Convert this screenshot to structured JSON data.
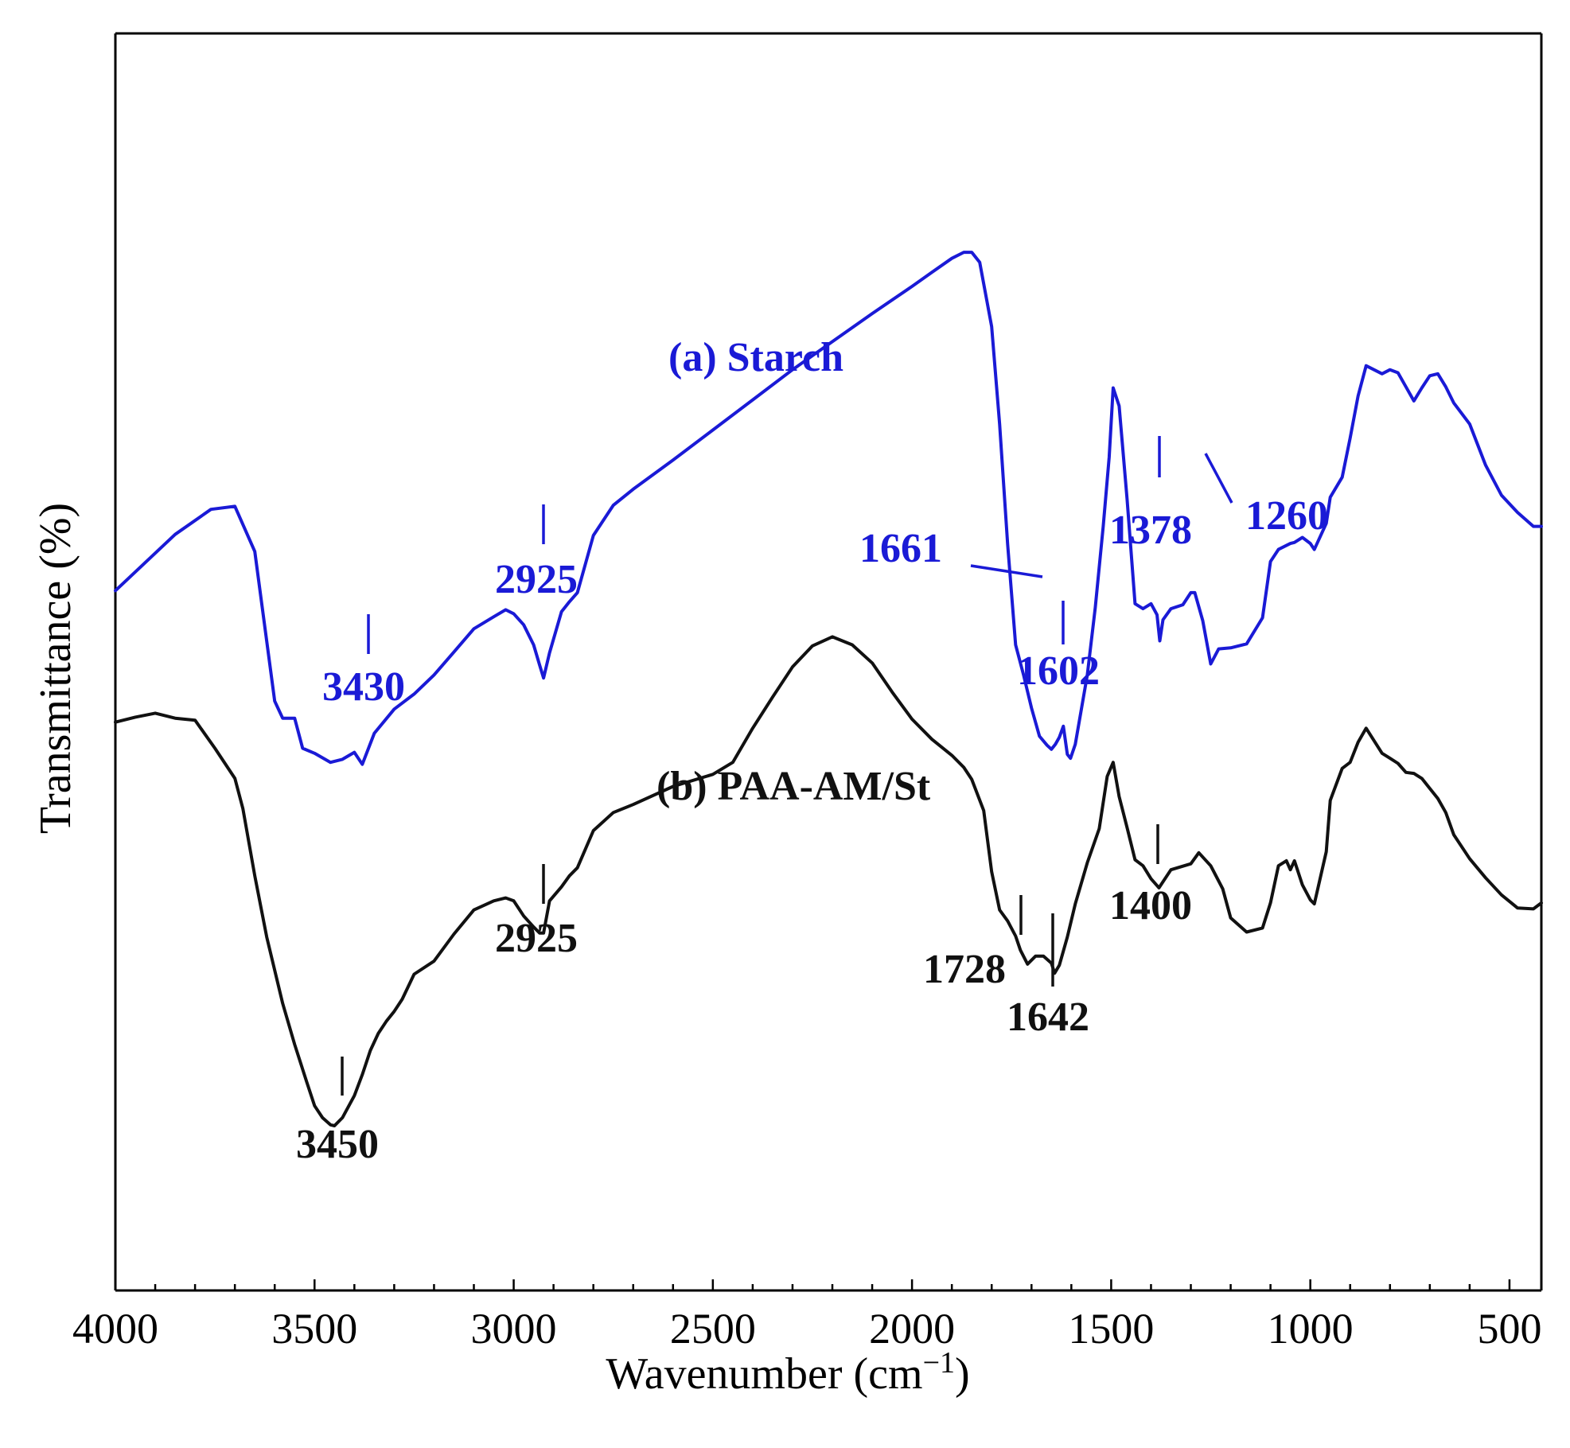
{
  "chart_data": {
    "type": "line",
    "title": "",
    "xlabel": "Wavenumber (cm",
    "xlabel_superscript": "−1",
    "xlabel_suffix": ")",
    "ylabel": "Transmittance (%)",
    "xlim": [
      4000,
      420
    ],
    "ylim": [
      0,
      100
    ],
    "x_ticks": [
      4000,
      3500,
      3000,
      2500,
      2000,
      1500,
      1000,
      500
    ],
    "x_tick_labels": [
      "4000",
      "3500",
      "3000",
      "2500",
      "2000",
      "1500",
      "1000",
      "500"
    ],
    "y_tick_labels": [],
    "grid": false,
    "colors": {
      "starch": "#1a1ad6",
      "paa": "#111111"
    },
    "series": [
      {
        "name": "starch",
        "label": "(a) Starch",
        "x": [
          4000,
          3850,
          3760,
          3700,
          3650,
          3600,
          3580,
          3550,
          3530,
          3500,
          3460,
          3430,
          3400,
          3380,
          3350,
          3300,
          3250,
          3200,
          3150,
          3100,
          3050,
          3020,
          3000,
          2975,
          2950,
          2935,
          2925,
          2910,
          2880,
          2860,
          2840,
          2800,
          2750,
          2700,
          2600,
          2500,
          2400,
          2300,
          2200,
          2100,
          2000,
          1950,
          1900,
          1870,
          1850,
          1830,
          1800,
          1780,
          1760,
          1740,
          1720,
          1700,
          1680,
          1661,
          1650,
          1640,
          1630,
          1620,
          1610,
          1602,
          1590,
          1560,
          1540,
          1520,
          1505,
          1495,
          1480,
          1460,
          1440,
          1420,
          1400,
          1385,
          1378,
          1370,
          1350,
          1320,
          1300,
          1290,
          1270,
          1250,
          1230,
          1200,
          1160,
          1120,
          1100,
          1080,
          1050,
          1040,
          1020,
          1000,
          990,
          960,
          950,
          920,
          900,
          880,
          860,
          820,
          800,
          780,
          760,
          740,
          720,
          700,
          680,
          660,
          640,
          600,
          560,
          520,
          480,
          440,
          420
        ],
        "y": [
          69.7,
          75.3,
          77.8,
          78.1,
          73.6,
          58.7,
          57.0,
          57.0,
          54.0,
          53.5,
          52.6,
          52.9,
          53.6,
          52.4,
          55.5,
          57.9,
          59.4,
          61.3,
          63.6,
          65.9,
          67.1,
          67.8,
          67.4,
          66.3,
          64.3,
          62.3,
          61.0,
          63.5,
          67.6,
          68.6,
          69.5,
          75.2,
          78.2,
          79.8,
          82.7,
          85.7,
          88.7,
          91.7,
          94.5,
          97.3,
          100.0,
          101.4,
          102.8,
          103.4,
          103.4,
          102.4,
          96.0,
          86.3,
          74.3,
          64.3,
          61.3,
          58.0,
          55.2,
          54.3,
          53.9,
          54.4,
          55.1,
          56.2,
          53.4,
          53.0,
          54.4,
          61.3,
          68.0,
          76.1,
          83.0,
          89.9,
          88.1,
          78.8,
          68.4,
          67.9,
          68.4,
          67.3,
          64.7,
          66.8,
          67.9,
          68.3,
          69.5,
          69.5,
          66.7,
          62.4,
          63.9,
          64.0,
          64.4,
          67.0,
          72.6,
          73.8,
          74.4,
          74.5,
          75.0,
          74.4,
          73.8,
          76.4,
          79.0,
          81.0,
          84.9,
          89.1,
          92.1,
          91.3,
          91.7,
          91.4,
          90.0,
          88.6,
          89.9,
          91.1,
          91.3,
          90.0,
          88.4,
          86.3,
          82.2,
          79.2,
          77.5,
          76.1,
          76.1
        ]
      },
      {
        "name": "paa",
        "label": "(b) PAA-AM/St",
        "x": [
          4000,
          3950,
          3900,
          3850,
          3800,
          3750,
          3700,
          3680,
          3650,
          3620,
          3580,
          3550,
          3520,
          3500,
          3480,
          3460,
          3450,
          3430,
          3400,
          3380,
          3360,
          3340,
          3320,
          3300,
          3280,
          3250,
          3200,
          3150,
          3100,
          3050,
          3020,
          3000,
          2975,
          2950,
          2935,
          2925,
          2910,
          2880,
          2860,
          2840,
          2800,
          2750,
          2700,
          2600,
          2500,
          2450,
          2400,
          2350,
          2300,
          2250,
          2200,
          2150,
          2100,
          2050,
          2000,
          1950,
          1900,
          1870,
          1850,
          1820,
          1800,
          1780,
          1760,
          1740,
          1728,
          1710,
          1690,
          1670,
          1650,
          1642,
          1630,
          1610,
          1590,
          1560,
          1530,
          1510,
          1495,
          1480,
          1460,
          1440,
          1420,
          1400,
          1380,
          1350,
          1300,
          1280,
          1250,
          1220,
          1200,
          1160,
          1120,
          1100,
          1080,
          1060,
          1050,
          1040,
          1020,
          1000,
          990,
          960,
          950,
          920,
          900,
          880,
          860,
          820,
          800,
          780,
          760,
          740,
          720,
          700,
          680,
          660,
          640,
          600,
          560,
          520,
          480,
          440,
          420
        ],
        "y": [
          56.6,
          57.1,
          57.5,
          57.0,
          56.8,
          54.0,
          51.0,
          48.0,
          41.3,
          35.2,
          28.6,
          24.5,
          20.8,
          18.4,
          17.2,
          16.5,
          16.4,
          17.2,
          19.4,
          21.5,
          23.9,
          25.6,
          26.8,
          27.8,
          29.0,
          31.5,
          32.8,
          35.5,
          37.9,
          38.8,
          39.1,
          38.8,
          37.3,
          36.2,
          35.6,
          35.6,
          38.8,
          40.2,
          41.3,
          42.1,
          45.8,
          47.6,
          48.4,
          50.2,
          51.4,
          52.6,
          56.0,
          59.1,
          62.1,
          64.2,
          65.1,
          64.3,
          62.5,
          59.6,
          56.9,
          54.9,
          53.3,
          52.1,
          50.9,
          47.8,
          41.7,
          37.9,
          36.8,
          35.3,
          33.9,
          32.5,
          33.3,
          33.3,
          32.6,
          31.6,
          32.4,
          35.2,
          38.5,
          42.6,
          46.0,
          51.2,
          52.6,
          49.2,
          46.1,
          42.9,
          42.3,
          41.0,
          40.1,
          41.9,
          42.5,
          43.6,
          42.3,
          40.0,
          37.1,
          35.7,
          36.1,
          38.6,
          42.3,
          42.8,
          41.9,
          42.8,
          40.4,
          38.9,
          38.5,
          43.7,
          48.8,
          52.0,
          52.6,
          54.6,
          56.0,
          53.5,
          53.0,
          52.5,
          51.6,
          51.5,
          51.0,
          50.0,
          49.0,
          47.6,
          45.4,
          43.0,
          41.1,
          39.4,
          38.1,
          38.0,
          38.6
        ]
      }
    ],
    "peaks": [
      {
        "series": "starch",
        "wavenumber": 3430,
        "label": "3430"
      },
      {
        "series": "starch",
        "wavenumber": 2925,
        "label": "2925"
      },
      {
        "series": "starch",
        "wavenumber": 1661,
        "label": "1661"
      },
      {
        "series": "starch",
        "wavenumber": 1602,
        "label": "1602"
      },
      {
        "series": "starch",
        "wavenumber": 1378,
        "label": "1378"
      },
      {
        "series": "starch",
        "wavenumber": 1260,
        "label": "1260"
      },
      {
        "series": "paa",
        "wavenumber": 3450,
        "label": "3450"
      },
      {
        "series": "paa",
        "wavenumber": 2925,
        "label": "2925"
      },
      {
        "series": "paa",
        "wavenumber": 1728,
        "label": "1728"
      },
      {
        "series": "paa",
        "wavenumber": 1642,
        "label": "1642"
      },
      {
        "series": "paa",
        "wavenumber": 1400,
        "label": "1400"
      }
    ]
  }
}
